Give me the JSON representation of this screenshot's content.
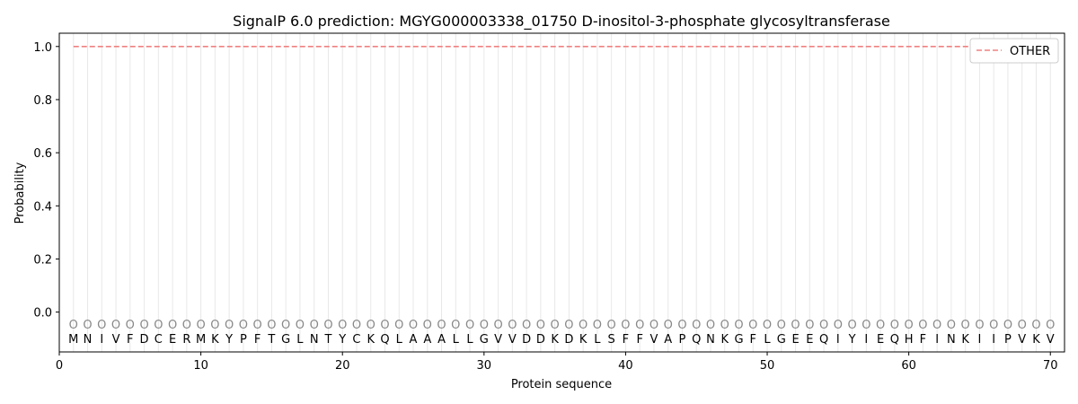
{
  "chart_data": {
    "type": "line",
    "title": "SignalP 6.0 prediction: MGYG000003338_01750 D-inositol-3-phosphate glycosyltransferase",
    "xlabel": "Protein sequence",
    "ylabel": "Probability",
    "xlim": [
      0,
      71
    ],
    "ylim": [
      -0.15,
      1.05
    ],
    "xticks": [
      "0",
      "10",
      "20",
      "30",
      "40",
      "50",
      "60",
      "70"
    ],
    "yticks": [
      "0.0",
      "0.2",
      "0.4",
      "0.6",
      "0.8",
      "1.0"
    ],
    "xtick_values": [
      0,
      10,
      20,
      30,
      40,
      50,
      60,
      70
    ],
    "ytick_values": [
      0.0,
      0.2,
      0.4,
      0.6,
      0.8,
      1.0
    ],
    "legend": {
      "position": "top-right",
      "entries": [
        {
          "label": "OTHER",
          "color": "#f08080",
          "style": "dashed"
        }
      ]
    },
    "series": [
      {
        "name": "OTHER",
        "x_start": 1,
        "x_end": 70,
        "values": "all 1.0",
        "y": 1.0,
        "color": "#f08080"
      }
    ],
    "sequence": [
      "M",
      "N",
      "I",
      "V",
      "F",
      "D",
      "C",
      "E",
      "R",
      "M",
      "K",
      "Y",
      "P",
      "F",
      "T",
      "G",
      "L",
      "N",
      "T",
      "Y",
      "C",
      "K",
      "Q",
      "L",
      "A",
      "A",
      "A",
      "L",
      "L",
      "G",
      "V",
      "V",
      "D",
      "D",
      "K",
      "D",
      "K",
      "L",
      "S",
      "F",
      "F",
      "V",
      "A",
      "P",
      "Q",
      "N",
      "K",
      "G",
      "F",
      "L",
      "G",
      "E",
      "E",
      "Q",
      "I",
      "Y",
      "I",
      "E",
      "Q",
      "H",
      "F",
      "I",
      "N",
      "K",
      "I",
      "I",
      "P",
      "V",
      "K",
      "V"
    ],
    "region_marker": "O",
    "grid": "vertical lines at each residue"
  }
}
